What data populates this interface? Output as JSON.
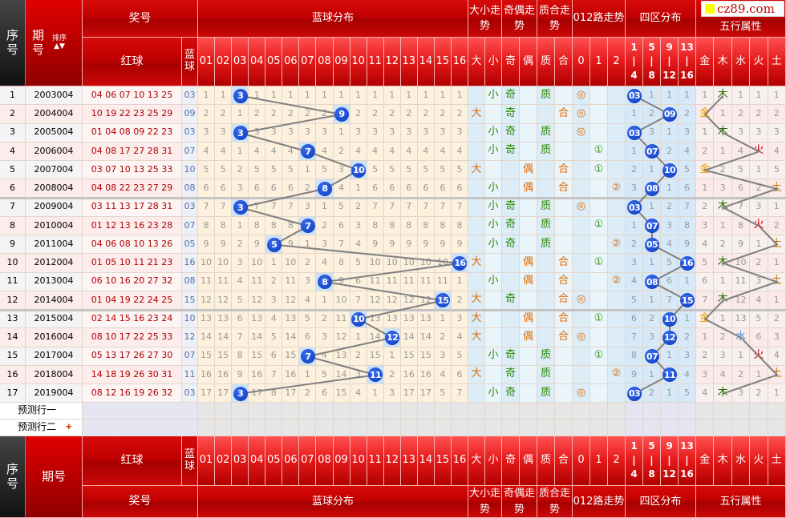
{
  "watermark": "cz89.com",
  "header": {
    "seq": "序\n号",
    "issue": "期\n号",
    "issue_footer": "期号",
    "sort": "排序",
    "prize": "奖号",
    "red": "红球",
    "blue": "蓝\n球",
    "blue_dist": "蓝球分布",
    "size": "大小走势",
    "parity": "奇偶走势",
    "prime": "质合走势",
    "road": "012路走势",
    "zone": "四区分布",
    "element": "五行属性",
    "blue_cols": [
      "01",
      "02",
      "03",
      "04",
      "05",
      "06",
      "07",
      "08",
      "09",
      "10",
      "11",
      "12",
      "13",
      "14",
      "15",
      "16"
    ],
    "size_cols": [
      "大",
      "小"
    ],
    "parity_cols": [
      "奇",
      "偶"
    ],
    "prime_cols": [
      "质",
      "合"
    ],
    "road_cols": [
      "0",
      "1",
      "2"
    ],
    "zone_cols": [
      "1\n|\n4",
      "5\n|\n8",
      "9\n|\n12",
      "13\n|\n16"
    ],
    "element_cols": [
      "金",
      "木",
      "水",
      "火",
      "土"
    ]
  },
  "colors": {
    "big": "#e06a00",
    "small": "#2a8a00",
    "ball": "#0a36b8",
    "gold": "#e8a000",
    "wood": "#2a7000",
    "water": "#4a90d0",
    "fire": "#d00000",
    "earth": "#c07800"
  },
  "rows": [
    {
      "seq": "1",
      "issue": "2003004",
      "red": "04 06 07 10 13 25",
      "blue": "03",
      "dist": [
        1,
        1,
        3,
        1,
        1,
        1,
        1,
        1,
        1,
        1,
        1,
        1,
        1,
        1,
        1,
        1
      ],
      "size": "小",
      "parity": "奇",
      "prime": "质",
      "road": "◎",
      "zone": [
        "03",
        "1",
        "1",
        "1"
      ],
      "element": [
        "1",
        "木",
        "1",
        "1",
        "1"
      ]
    },
    {
      "seq": "2",
      "issue": "2004004",
      "red": "10 19 22 23 25 29",
      "blue": "09",
      "dist": [
        2,
        2,
        1,
        2,
        2,
        2,
        2,
        2,
        9,
        2,
        2,
        2,
        2,
        2,
        2,
        2
      ],
      "size": "大",
      "parity": "奇",
      "prime": "合",
      "road": "◎",
      "zone": [
        "1",
        "2",
        "09",
        "2"
      ],
      "element": [
        "金",
        "1",
        "2",
        "2",
        "2"
      ]
    },
    {
      "seq": "3",
      "issue": "2005004",
      "red": "01 04 08 09 22 23",
      "blue": "03",
      "dist": [
        3,
        3,
        3,
        3,
        3,
        3,
        3,
        3,
        1,
        3,
        3,
        3,
        3,
        3,
        3,
        3
      ],
      "size": "小",
      "parity": "奇",
      "prime": "质",
      "road": "◎",
      "zone": [
        "03",
        "3",
        "1",
        "3"
      ],
      "element": [
        "1",
        "木",
        "3",
        "3",
        "3"
      ]
    },
    {
      "seq": "4",
      "issue": "2006004",
      "red": "04 08 17 27 28 31",
      "blue": "07",
      "dist": [
        4,
        4,
        1,
        4,
        4,
        4,
        7,
        4,
        2,
        4,
        4,
        4,
        4,
        4,
        4,
        4
      ],
      "size": "小",
      "parity": "奇",
      "prime": "质",
      "road": "①",
      "zone": [
        "1",
        "07",
        "2",
        "4"
      ],
      "element": [
        "2",
        "1",
        "4",
        "火",
        "4"
      ]
    },
    {
      "seq": "5",
      "issue": "2007004",
      "red": "03 07 10 13 25 33",
      "blue": "10",
      "dist": [
        5,
        5,
        2,
        5,
        5,
        5,
        1,
        5,
        3,
        10,
        5,
        5,
        5,
        5,
        5,
        5
      ],
      "size": "大",
      "parity": "偶",
      "prime": "合",
      "road": "①",
      "zone": [
        "2",
        "1",
        "10",
        "5"
      ],
      "element": [
        "金",
        "2",
        "5",
        "1",
        "5"
      ]
    },
    {
      "seq": "6",
      "issue": "2008004",
      "red": "04 08 22 23 27 29",
      "blue": "08",
      "dist": [
        6,
        6,
        3,
        6,
        6,
        6,
        2,
        8,
        4,
        1,
        6,
        6,
        6,
        6,
        6,
        6
      ],
      "size": "小",
      "parity": "偶",
      "prime": "合",
      "road": "②",
      "zone": [
        "3",
        "08",
        "1",
        "6"
      ],
      "element": [
        "1",
        "3",
        "6",
        "2",
        "土"
      ]
    },
    {
      "seq": "7",
      "issue": "2009004",
      "red": "03 11 13 17 28 31",
      "blue": "03",
      "dist": [
        7,
        7,
        3,
        7,
        7,
        7,
        3,
        1,
        5,
        2,
        7,
        7,
        7,
        7,
        7,
        7
      ],
      "size": "小",
      "parity": "奇",
      "prime": "质",
      "road": "◎",
      "zone": [
        "03",
        "1",
        "2",
        "7"
      ],
      "element": [
        "2",
        "木",
        "7",
        "3",
        "1"
      ]
    },
    {
      "seq": "8",
      "issue": "2010004",
      "red": "01 12 13 16 23 28",
      "blue": "07",
      "dist": [
        8,
        8,
        1,
        8,
        8,
        8,
        7,
        2,
        6,
        3,
        8,
        8,
        8,
        8,
        8,
        8
      ],
      "size": "小",
      "parity": "奇",
      "prime": "质",
      "road": "①",
      "zone": [
        "1",
        "07",
        "3",
        "8"
      ],
      "element": [
        "3",
        "1",
        "8",
        "火",
        "2"
      ]
    },
    {
      "seq": "9",
      "issue": "2011004",
      "red": "04 06 08 10 13 26",
      "blue": "05",
      "dist": [
        9,
        9,
        2,
        9,
        5,
        9,
        1,
        3,
        7,
        4,
        9,
        9,
        9,
        9,
        9,
        9
      ],
      "size": "小",
      "parity": "奇",
      "prime": "质",
      "road": "②",
      "zone": [
        "2",
        "05",
        "4",
        "9"
      ],
      "element": [
        "4",
        "2",
        "9",
        "1",
        "土"
      ]
    },
    {
      "seq": "10",
      "issue": "2012004",
      "red": "01 05 10 11 21 23",
      "blue": "16",
      "dist": [
        10,
        10,
        3,
        10,
        1,
        10,
        2,
        4,
        8,
        5,
        10,
        10,
        10,
        10,
        10,
        16
      ],
      "size": "大",
      "parity": "偶",
      "prime": "合",
      "road": "①",
      "zone": [
        "3",
        "1",
        "5",
        "16"
      ],
      "element": [
        "5",
        "木",
        "10",
        "2",
        "1"
      ]
    },
    {
      "seq": "11",
      "issue": "2013004",
      "red": "06 10 16 20 27 32",
      "blue": "08",
      "dist": [
        11,
        11,
        4,
        11,
        2,
        11,
        3,
        8,
        9,
        6,
        11,
        11,
        11,
        11,
        11,
        1
      ],
      "size": "小",
      "parity": "偶",
      "prime": "合",
      "road": "②",
      "zone": [
        "4",
        "08",
        "6",
        "1"
      ],
      "element": [
        "6",
        "1",
        "11",
        "3",
        "土"
      ]
    },
    {
      "seq": "12",
      "issue": "2014004",
      "red": "01 04 19 22 24 25",
      "blue": "15",
      "dist": [
        12,
        12,
        5,
        12,
        3,
        12,
        4,
        1,
        10,
        7,
        12,
        12,
        12,
        12,
        15,
        2
      ],
      "size": "大",
      "parity": "奇",
      "prime": "合",
      "road": "◎",
      "zone": [
        "5",
        "1",
        "7",
        "15"
      ],
      "element": [
        "7",
        "木",
        "12",
        "4",
        "1"
      ]
    },
    {
      "seq": "13",
      "issue": "2015004",
      "red": "02 14 15 16 23 24",
      "blue": "10",
      "dist": [
        13,
        13,
        6,
        13,
        4,
        13,
        5,
        2,
        11,
        10,
        13,
        13,
        13,
        13,
        1,
        3
      ],
      "size": "大",
      "parity": "偶",
      "prime": "合",
      "road": "①",
      "zone": [
        "6",
        "2",
        "10",
        "1"
      ],
      "element": [
        "金",
        "1",
        "13",
        "5",
        "2"
      ]
    },
    {
      "seq": "14",
      "issue": "2016004",
      "red": "08 10 17 22 25 33",
      "blue": "12",
      "dist": [
        14,
        14,
        7,
        14,
        5,
        14,
        6,
        3,
        12,
        1,
        14,
        12,
        14,
        14,
        2,
        4
      ],
      "size": "大",
      "parity": "偶",
      "prime": "合",
      "road": "◎",
      "zone": [
        "7",
        "3",
        "12",
        "2"
      ],
      "element": [
        "1",
        "2",
        "水",
        "6",
        "3"
      ]
    },
    {
      "seq": "15",
      "issue": "2017004",
      "red": "05 13 17 26 27 30",
      "blue": "07",
      "dist": [
        15,
        15,
        8,
        15,
        6,
        15,
        7,
        4,
        13,
        2,
        15,
        1,
        15,
        15,
        3,
        5
      ],
      "size": "小",
      "parity": "奇",
      "prime": "质",
      "road": "①",
      "zone": [
        "8",
        "07",
        "1",
        "3"
      ],
      "element": [
        "2",
        "3",
        "1",
        "火",
        "4"
      ]
    },
    {
      "seq": "16",
      "issue": "2018004",
      "red": "14 18 19 26 30 31",
      "blue": "11",
      "dist": [
        16,
        16,
        9,
        16,
        7,
        16,
        1,
        5,
        14,
        3,
        11,
        2,
        16,
        16,
        4,
        6
      ],
      "size": "大",
      "parity": "奇",
      "prime": "质",
      "road": "②",
      "zone": [
        "9",
        "1",
        "11",
        "4"
      ],
      "element": [
        "3",
        "4",
        "2",
        "1",
        "土"
      ]
    },
    {
      "seq": "17",
      "issue": "2019004",
      "red": "08 12 16 19 26 32",
      "blue": "03",
      "dist": [
        17,
        17,
        3,
        17,
        8,
        17,
        2,
        6,
        15,
        4,
        1,
        3,
        17,
        17,
        5,
        7
      ],
      "size": "小",
      "parity": "奇",
      "prime": "质",
      "road": "◎",
      "zone": [
        "03",
        "2",
        "1",
        "5"
      ],
      "element": [
        "4",
        "木",
        "3",
        "2",
        "1"
      ]
    }
  ],
  "predict": [
    "预测行一",
    "预测行二"
  ]
}
